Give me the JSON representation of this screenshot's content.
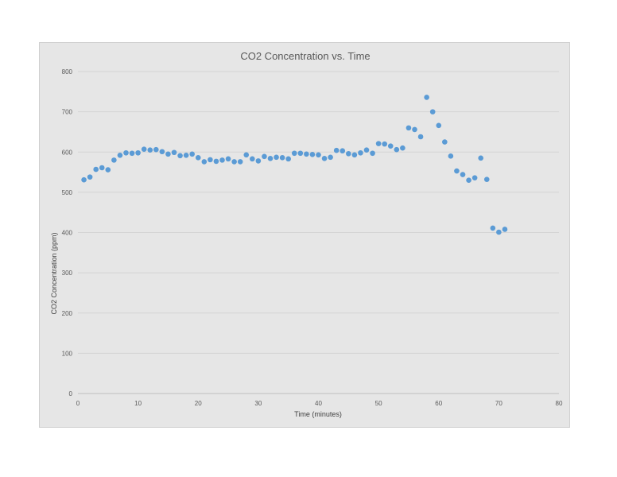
{
  "colors": {
    "background": "#e6e6e6",
    "gridline": "#d4d4d4",
    "point": "#5b9bd5",
    "text": "#595959"
  },
  "chart_data": {
    "type": "scatter",
    "title": "CO2  Concentration vs. Time",
    "xlabel": "Time (minutes)",
    "ylabel": "CO2 Concentration (ppm)",
    "xlim": [
      0,
      80
    ],
    "ylim": [
      0,
      800
    ],
    "xticks": [
      0,
      10,
      20,
      30,
      40,
      50,
      60,
      70,
      80
    ],
    "yticks": [
      0,
      100,
      200,
      300,
      400,
      500,
      600,
      700,
      800
    ],
    "grid": "horizontal",
    "legend": "none",
    "x": [
      1,
      2,
      3,
      4,
      5,
      6,
      7,
      8,
      9,
      10,
      11,
      12,
      13,
      14,
      15,
      16,
      17,
      18,
      19,
      20,
      21,
      22,
      23,
      24,
      25,
      26,
      27,
      28,
      29,
      30,
      31,
      32,
      33,
      34,
      35,
      36,
      37,
      38,
      39,
      40,
      41,
      42,
      43,
      44,
      45,
      46,
      47,
      48,
      49,
      50,
      51,
      52,
      53,
      54,
      55,
      56,
      57,
      58,
      59,
      60,
      61,
      62,
      63,
      64,
      65,
      66,
      67,
      68,
      69,
      70,
      71
    ],
    "y": [
      531,
      538,
      557,
      561,
      556,
      580,
      592,
      598,
      597,
      598,
      607,
      605,
      606,
      601,
      595,
      599,
      591,
      592,
      595,
      586,
      576,
      581,
      577,
      580,
      583,
      576,
      576,
      593,
      583,
      578,
      589,
      584,
      587,
      586,
      583,
      597,
      597,
      595,
      594,
      593,
      584,
      587,
      604,
      603,
      596,
      593,
      598,
      605,
      597,
      621,
      620,
      615,
      606,
      610,
      660,
      656,
      638,
      736,
      700,
      666,
      625,
      590,
      553,
      544,
      530,
      536,
      585,
      532,
      411,
      401,
      408
    ]
  }
}
